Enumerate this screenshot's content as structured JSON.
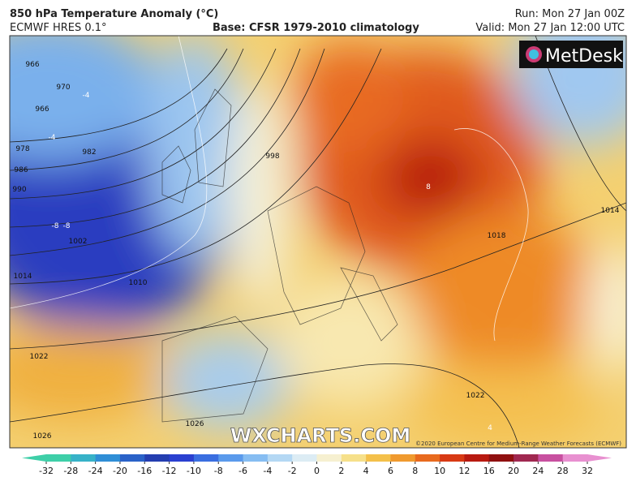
{
  "header": {
    "title": "850 hPa Temperature Anomaly (°C)",
    "model": "ECMWF HRES 0.1°",
    "base": "Base: CFSR 1979-2010 climatology",
    "run": "Run: Mon 27 Jan 00Z",
    "valid": "Valid: Mon 27 Jan 12:00 UTC"
  },
  "map": {
    "logo": "MetDesk",
    "watermark": "WXCHARTS.COM",
    "copyright": "©2020 European Centre for Medium-Range Weather Forecasts (ECMWF)",
    "isobar_labels": [
      "966",
      "970",
      "966",
      "978",
      "982",
      "986",
      "990",
      "998",
      "1002",
      "1010",
      "1014",
      "1014",
      "1018",
      "1022",
      "1022",
      "1026",
      "1026"
    ],
    "anomaly_labels": [
      "-4",
      "-8",
      "-8",
      "8",
      "-4",
      "4"
    ]
  },
  "colorbar": {
    "ticks": [
      -32,
      -28,
      -24,
      -20,
      -16,
      -12,
      -10,
      -8,
      -6,
      -4,
      -2,
      0,
      2,
      4,
      6,
      8,
      10,
      12,
      16,
      20,
      24,
      28,
      32
    ],
    "colors": [
      "#3ecfa8",
      "#37b2c8",
      "#2f8ed6",
      "#2a62c8",
      "#243eb0",
      "#2a40d0",
      "#3a6ee0",
      "#5a9aec",
      "#86bdf2",
      "#b4d8f4",
      "#dcecf4",
      "#f6f0d0",
      "#f6e08a",
      "#f4c04a",
      "#f09a2e",
      "#e86a1e",
      "#d83a14",
      "#b81a10",
      "#901010",
      "#a02850",
      "#c850a0",
      "#e890d0"
    ]
  }
}
